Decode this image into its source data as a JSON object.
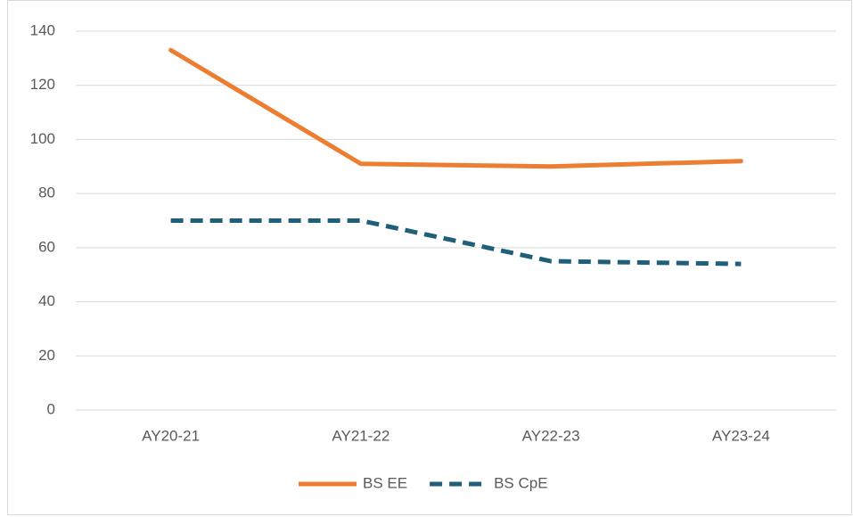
{
  "chart_data": {
    "type": "line",
    "categories": [
      "AY20-21",
      "AY21-22",
      "AY22-23",
      "AY23-24"
    ],
    "series": [
      {
        "name": "BS EE",
        "color": "#ed7d31",
        "dash": false,
        "values": [
          133,
          91,
          90,
          92
        ]
      },
      {
        "name": "BS CpE",
        "color": "#1f5f7a",
        "dash": true,
        "values": [
          70,
          70,
          55,
          54
        ]
      }
    ],
    "ylim": [
      0,
      140
    ],
    "yticks": [
      0,
      20,
      40,
      60,
      80,
      100,
      120,
      140
    ],
    "grid": true,
    "legend": "bottom"
  }
}
